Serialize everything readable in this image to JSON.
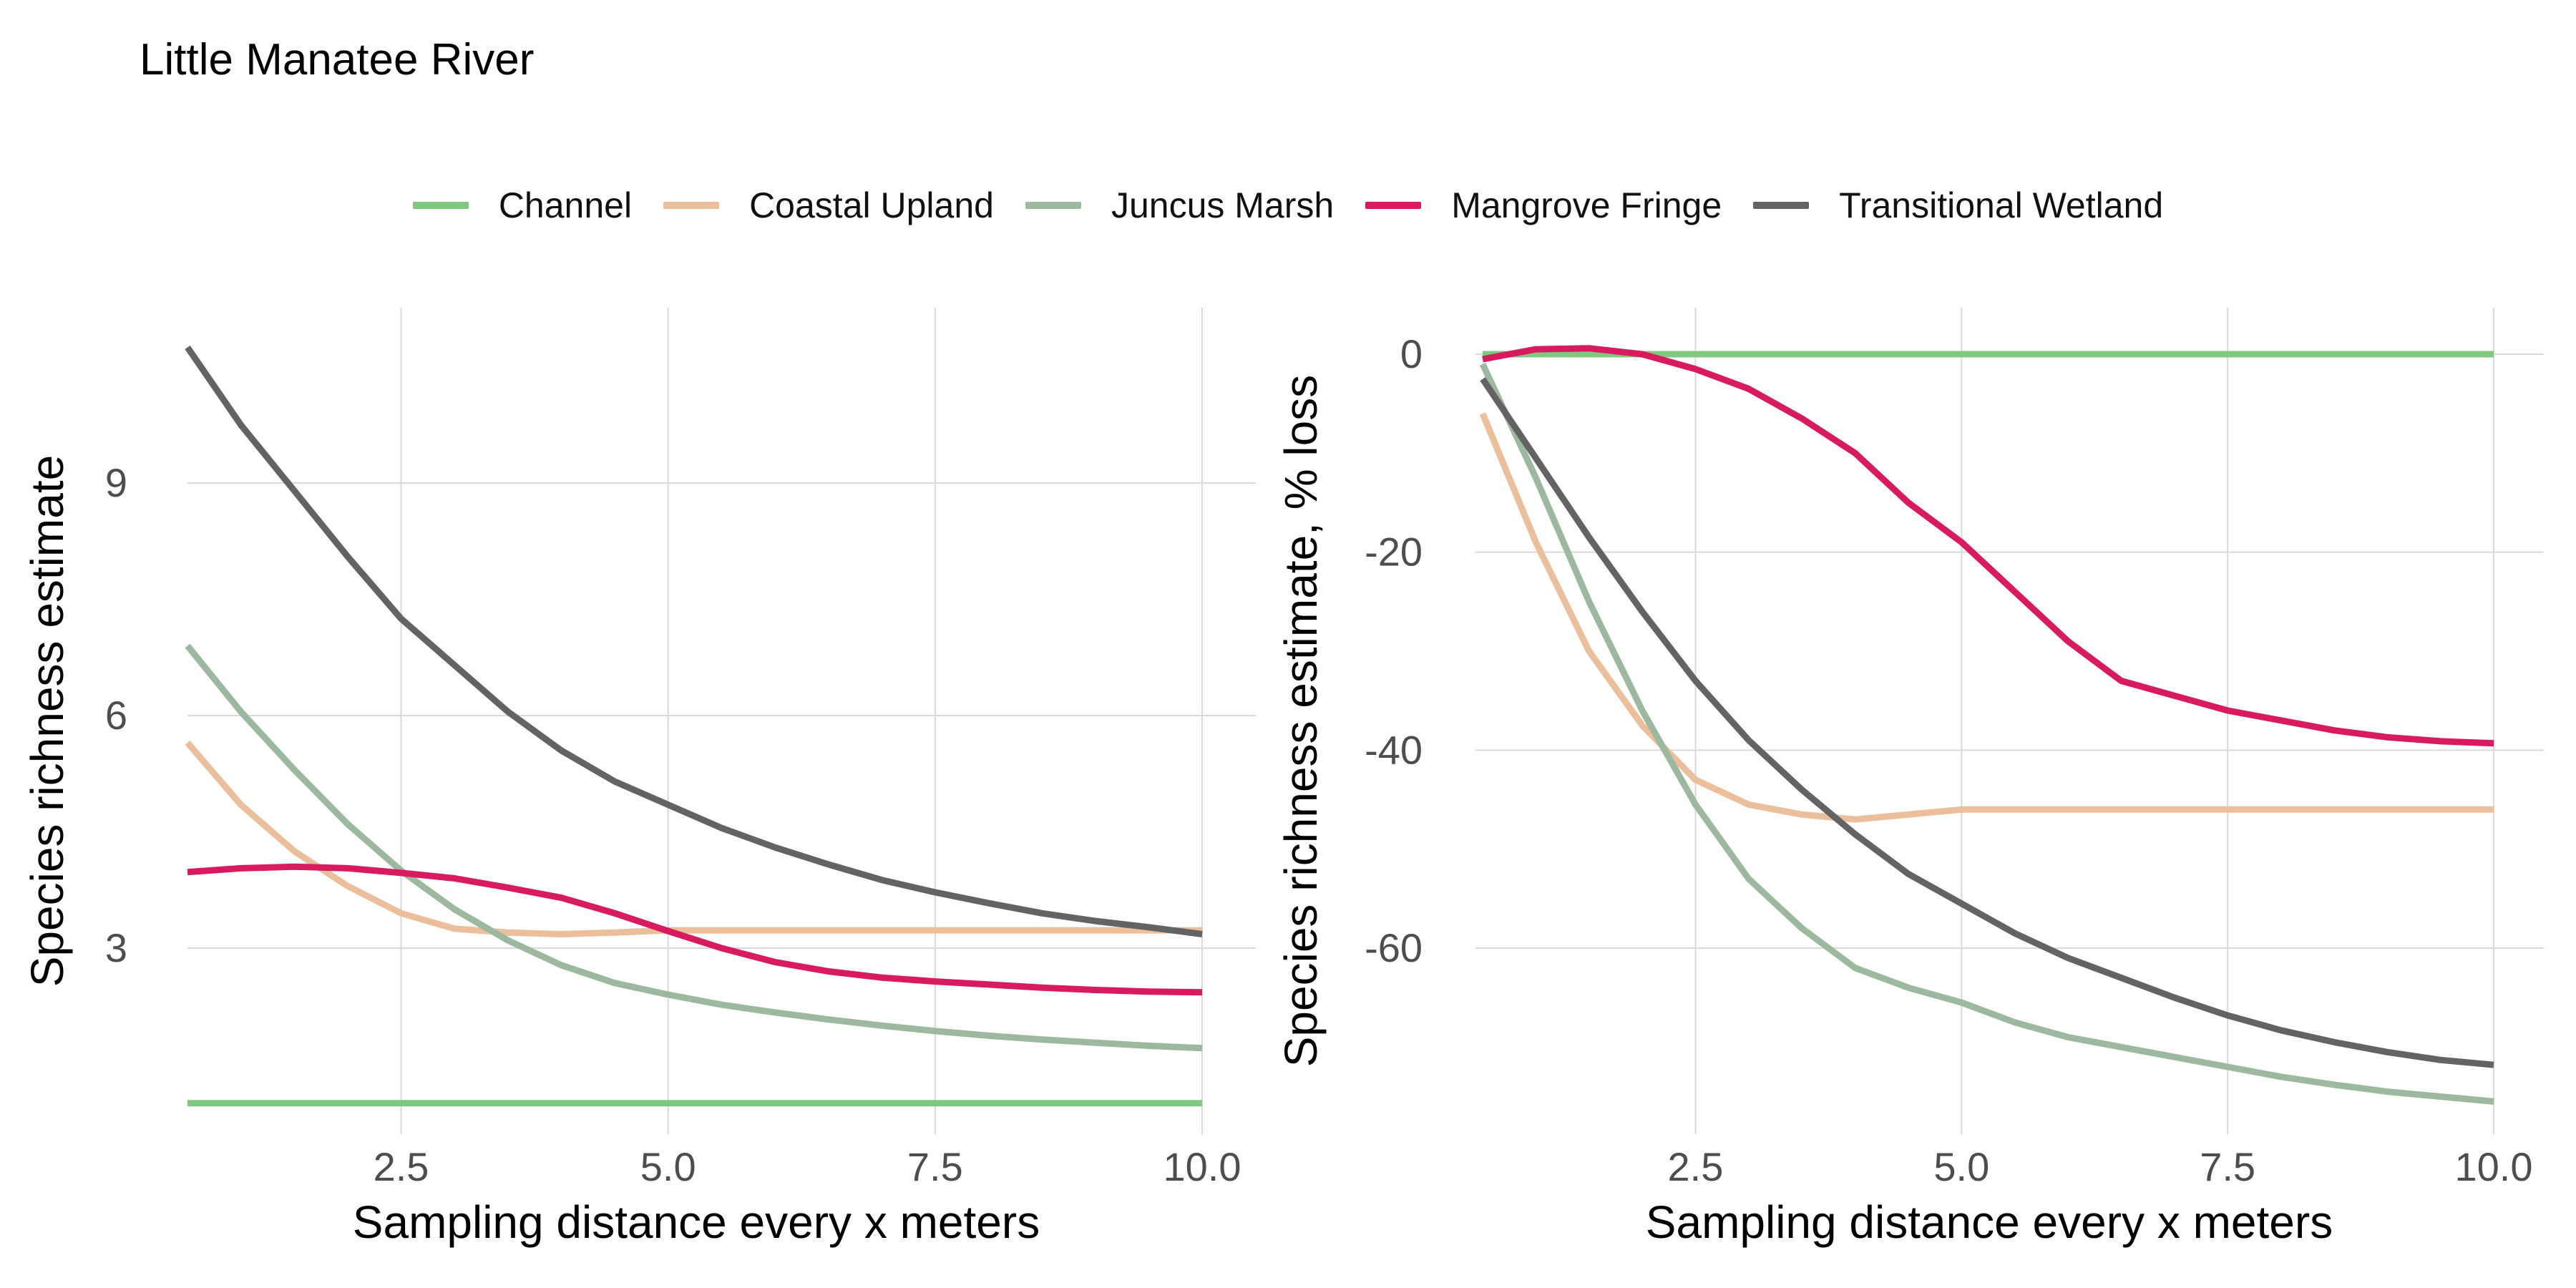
{
  "title": "Little Manatee River",
  "series_colors": {
    "Channel": "#7fc97f",
    "Coastal Upland": "#ebbe9c",
    "Juncus Marsh": "#9cb89f",
    "Mangrove Fringe": "#d81b60",
    "Transitional Wetland": "#636363"
  },
  "legend": [
    {
      "label": "Channel",
      "color": "#7fc97f"
    },
    {
      "label": "Coastal Upland",
      "color": "#ebbe9c"
    },
    {
      "label": "Juncus Marsh",
      "color": "#9cb89f"
    },
    {
      "label": "Mangrove Fringe",
      "color": "#d81b60"
    },
    {
      "label": "Transitional Wetland",
      "color": "#636363"
    }
  ],
  "chart_data": [
    {
      "type": "line",
      "title": "",
      "xlabel": "Sampling distance every x meters",
      "ylabel": "Species richness estimate",
      "xlim": [
        0.5,
        10.0
      ],
      "ylim": [
        0.8,
        11.2
      ],
      "x_ticks": [
        2.5,
        5.0,
        7.5,
        10.0
      ],
      "x_tick_labels": [
        "2.5",
        "5.0",
        "7.5",
        "10.0"
      ],
      "y_ticks": [
        3,
        6,
        9
      ],
      "y_tick_labels": [
        "3",
        "6",
        "9"
      ],
      "grid": true,
      "series": [
        {
          "name": "Channel",
          "x": [
            0.5,
            10.0
          ],
          "y": [
            1.0,
            1.0
          ]
        },
        {
          "name": "Coastal Upland",
          "x": [
            0.5,
            1.0,
            1.5,
            2.0,
            2.5,
            3.0,
            3.5,
            4.0,
            4.5,
            5.0,
            6.0,
            7.0,
            8.0,
            9.0,
            10.0
          ],
          "y": [
            5.65,
            4.85,
            4.25,
            3.8,
            3.45,
            3.25,
            3.2,
            3.18,
            3.2,
            3.23,
            3.23,
            3.23,
            3.23,
            3.23,
            3.23
          ]
        },
        {
          "name": "Juncus Marsh",
          "x": [
            0.5,
            1.0,
            1.5,
            2.0,
            2.5,
            3.0,
            3.5,
            4.0,
            4.5,
            5.0,
            5.5,
            6.0,
            6.5,
            7.0,
            7.5,
            8.0,
            8.5,
            9.0,
            9.5,
            10.0
          ],
          "y": [
            6.9,
            6.05,
            5.3,
            4.6,
            4.0,
            3.5,
            3.1,
            2.78,
            2.55,
            2.4,
            2.27,
            2.17,
            2.08,
            2.0,
            1.93,
            1.87,
            1.82,
            1.78,
            1.74,
            1.71
          ]
        },
        {
          "name": "Mangrove Fringe",
          "x": [
            0.5,
            1.0,
            1.5,
            2.0,
            2.5,
            3.0,
            3.5,
            4.0,
            4.5,
            5.0,
            5.5,
            6.0,
            6.5,
            7.0,
            7.5,
            8.0,
            8.5,
            9.0,
            9.5,
            10.0
          ],
          "y": [
            3.98,
            4.03,
            4.05,
            4.03,
            3.97,
            3.9,
            3.78,
            3.65,
            3.45,
            3.22,
            3.0,
            2.82,
            2.7,
            2.62,
            2.57,
            2.53,
            2.49,
            2.46,
            2.44,
            2.43
          ]
        },
        {
          "name": "Transitional Wetland",
          "x": [
            0.5,
            1.0,
            1.5,
            2.0,
            2.5,
            3.0,
            3.5,
            4.0,
            4.5,
            5.0,
            5.5,
            6.0,
            6.5,
            7.0,
            7.5,
            8.0,
            8.5,
            9.0,
            9.5,
            10.0
          ],
          "y": [
            10.75,
            9.75,
            8.9,
            8.05,
            7.25,
            6.65,
            6.05,
            5.55,
            5.15,
            4.85,
            4.55,
            4.3,
            4.08,
            3.88,
            3.72,
            3.58,
            3.45,
            3.35,
            3.27,
            3.18
          ]
        }
      ]
    },
    {
      "type": "line",
      "title": "",
      "xlabel": "Sampling distance every x meters",
      "ylabel": "Species richness estimate, % loss",
      "xlim": [
        0.5,
        10.0
      ],
      "ylim": [
        -75.5,
        4.5
      ],
      "x_ticks": [
        2.5,
        5.0,
        7.5,
        10.0
      ],
      "x_tick_labels": [
        "2.5",
        "5.0",
        "7.5",
        "10.0"
      ],
      "y_ticks": [
        0,
        -20,
        -40,
        -60
      ],
      "y_tick_labels": [
        "0",
        "-20",
        "-40",
        "-60"
      ],
      "grid": true,
      "series": [
        {
          "name": "Channel",
          "x": [
            0.5,
            10.0
          ],
          "y": [
            0,
            0
          ]
        },
        {
          "name": "Coastal Upland",
          "x": [
            0.5,
            1.0,
            1.5,
            2.0,
            2.5,
            3.0,
            3.5,
            4.0,
            4.5,
            5.0,
            6.0,
            7.0,
            8.0,
            9.0,
            10.0
          ],
          "y": [
            -6,
            -19,
            -30,
            -37.5,
            -43,
            -45.5,
            -46.5,
            -47,
            -46.5,
            -46,
            -46,
            -46,
            -46,
            -46,
            -46
          ]
        },
        {
          "name": "Juncus Marsh",
          "x": [
            0.5,
            1.0,
            1.5,
            2.0,
            2.5,
            3.0,
            3.5,
            4.0,
            4.5,
            5.0,
            5.5,
            6.0,
            6.5,
            7.0,
            7.5,
            8.0,
            8.5,
            9.0,
            9.5,
            10.0
          ],
          "y": [
            -1,
            -12.5,
            -25,
            -36,
            -45.5,
            -53,
            -58,
            -62,
            -64,
            -65.5,
            -67.5,
            -69,
            -70,
            -71,
            -72,
            -73,
            -73.8,
            -74.5,
            -75,
            -75.5
          ]
        },
        {
          "name": "Mangrove Fringe",
          "x": [
            0.5,
            1.0,
            1.5,
            2.0,
            2.5,
            3.0,
            3.5,
            4.0,
            4.5,
            5.0,
            5.5,
            6.0,
            6.5,
            7.0,
            7.5,
            8.0,
            8.5,
            9.0,
            9.5,
            10.0
          ],
          "y": [
            -0.5,
            0.5,
            0.6,
            0,
            -1.5,
            -3.5,
            -6.5,
            -10,
            -15,
            -19,
            -24,
            -29,
            -33,
            -34.5,
            -36,
            -37,
            -38,
            -38.7,
            -39.1,
            -39.3
          ]
        },
        {
          "name": "Transitional Wetland",
          "x": [
            0.5,
            1.0,
            1.5,
            2.0,
            2.5,
            3.0,
            3.5,
            4.0,
            4.5,
            5.0,
            5.5,
            6.0,
            6.5,
            7.0,
            7.5,
            8.0,
            8.5,
            9.0,
            9.5,
            10.0
          ],
          "y": [
            -2.5,
            -10.5,
            -18.5,
            -26,
            -33,
            -39,
            -44,
            -48.5,
            -52.5,
            -55.5,
            -58.5,
            -61,
            -63,
            -65,
            -66.8,
            -68.3,
            -69.5,
            -70.5,
            -71.3,
            -71.8
          ]
        }
      ]
    }
  ]
}
